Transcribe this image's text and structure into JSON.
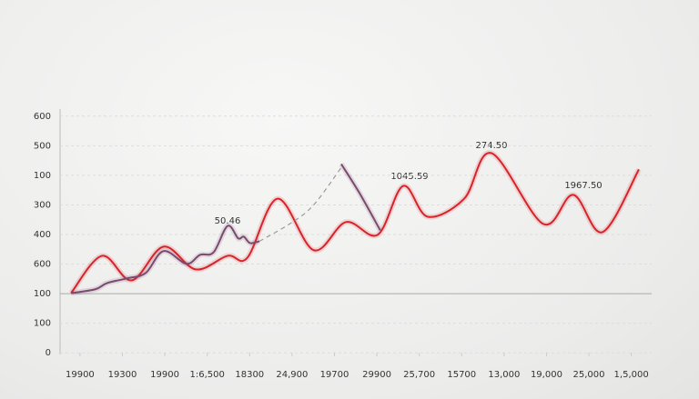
{
  "chart_data": {
    "type": "line",
    "xlim": [
      -0.47,
      13.48
    ],
    "xticks": [
      {
        "value": 0,
        "label": "19900"
      },
      {
        "value": 1,
        "label": "19300"
      },
      {
        "value": 2,
        "label": "19900"
      },
      {
        "value": 3,
        "label": "1:6,500"
      },
      {
        "value": 4,
        "label": "18300"
      },
      {
        "value": 5,
        "label": "24,900"
      },
      {
        "value": 6,
        "label": "19700"
      },
      {
        "value": 7,
        "label": "29900"
      },
      {
        "value": 8,
        "label": "25,700"
      },
      {
        "value": 9,
        "label": "15700"
      },
      {
        "value": 10,
        "label": "13,000"
      },
      {
        "value": 11,
        "label": "19,000"
      },
      {
        "value": 12,
        "label": "25,000"
      },
      {
        "value": 13,
        "label": "1,5,000"
      }
    ],
    "ylim": [
      -0.3,
      8.3
    ],
    "yticks": [
      {
        "value": 0,
        "label": "0"
      },
      {
        "value": 1,
        "label": "100"
      },
      {
        "value": 2,
        "label": "100"
      },
      {
        "value": 3,
        "label": "600"
      },
      {
        "value": 4,
        "label": "400"
      },
      {
        "value": 5,
        "label": "300"
      },
      {
        "value": 6,
        "label": "100"
      },
      {
        "value": 7,
        "label": "500"
      },
      {
        "value": 8,
        "label": "600"
      }
    ],
    "grid": true,
    "series": [
      {
        "color": "#d8232a",
        "dash": false,
        "x": [
          -0.21,
          0.52,
          1.22,
          1.97,
          2.73,
          3.48,
          3.95,
          4.66,
          5.51,
          6.27,
          7.02,
          7.62,
          8.2,
          9.06,
          9.7,
          10.92,
          11.63,
          12.32,
          13.18
        ],
        "values": [
          2.02,
          3.28,
          2.45,
          3.59,
          2.82,
          3.28,
          3.22,
          5.21,
          3.47,
          4.42,
          3.99,
          5.64,
          4.6,
          5.21,
          6.75,
          4.36,
          5.34,
          4.08,
          6.2
        ]
      },
      {
        "color": "#7b4a6e",
        "dash": false,
        "x": [
          -0.21,
          0.36,
          0.64,
          1.12,
          1.55,
          1.97,
          2.51,
          2.83,
          3.15,
          3.48,
          3.73,
          3.86,
          4.01,
          4.23,
          null,
          6.16,
          6.59,
          7.08
        ],
        "values": [
          2.02,
          2.15,
          2.36,
          2.52,
          2.7,
          3.44,
          3.01,
          3.31,
          3.4,
          4.29,
          3.87,
          3.93,
          3.71,
          3.77,
          null,
          6.38,
          5.4,
          4.14
        ]
      },
      {
        "color": "#9a9a9a",
        "dash": true,
        "x": [
          4.23,
          4.98,
          5.51,
          6.16
        ],
        "values": [
          3.77,
          4.39,
          5.0,
          6.26
        ]
      }
    ],
    "annotations": [
      "50.46",
      "1045.59",
      "274.50",
      "1967.50"
    ]
  }
}
